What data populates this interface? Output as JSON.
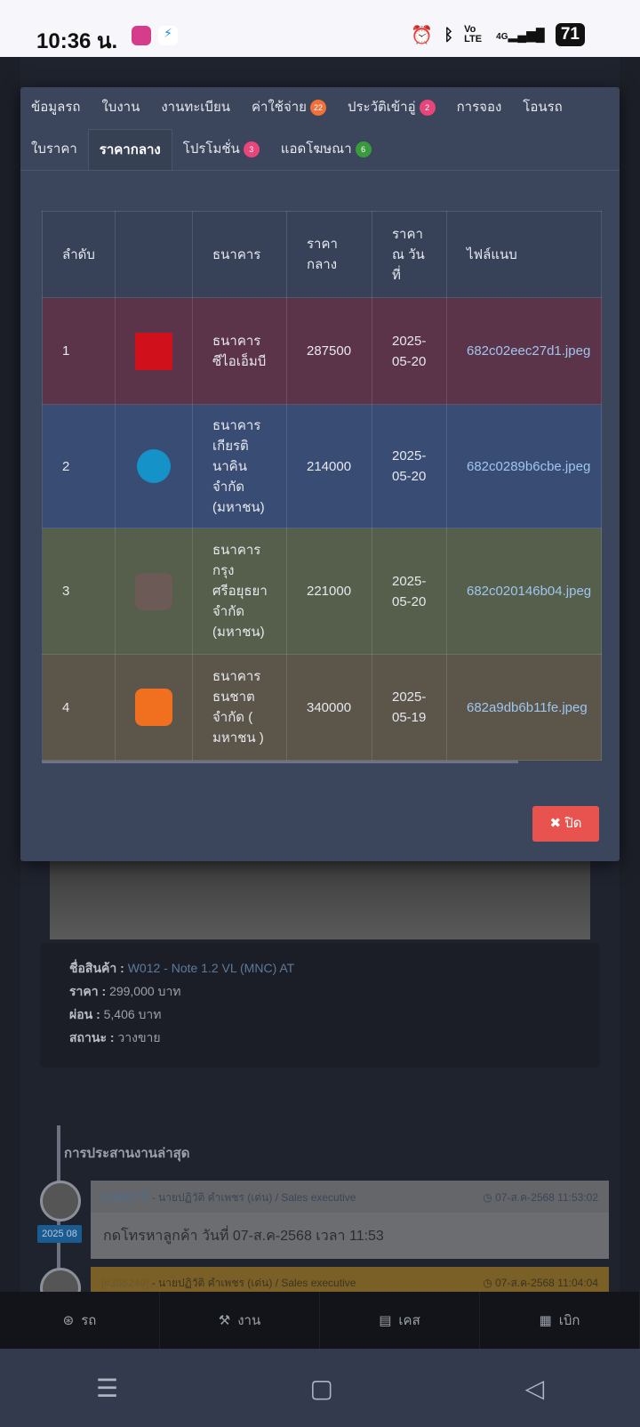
{
  "status_bar": {
    "time": "10:36 น.",
    "network": "4G",
    "volte": "Vo LTE",
    "battery": "71"
  },
  "modal": {
    "tabs_row1": [
      {
        "label": "ข้อมูลรถ"
      },
      {
        "label": "ใบงาน"
      },
      {
        "label": "งานทะเบียน"
      },
      {
        "label": "ค่าใช้จ่าย",
        "badge": "22",
        "badge_color": "#f0703a"
      },
      {
        "label": "ประวัติเข้าอู่",
        "badge": "2",
        "badge_color": "#e8457a"
      },
      {
        "label": "การจอง"
      },
      {
        "label": "โอนรถ"
      }
    ],
    "tabs_row2": [
      {
        "label": "ใบราคา"
      },
      {
        "label": "ราคากลาง",
        "active": true
      },
      {
        "label": "โปรโมชั่น",
        "badge": "3",
        "badge_color": "#e8457a"
      },
      {
        "label": "แอดโฆษณา",
        "badge": "6",
        "badge_color": "#3a9a3e"
      }
    ],
    "table": {
      "headers": [
        "ลำดับ",
        "",
        "ธนาคาร",
        "ราคา กลาง",
        "ราคา ณ วัน ที่",
        "ไฟล์แนบ"
      ],
      "rows": [
        {
          "no": "1",
          "logo": "cimb-thai-logo",
          "bank": "ธนาคาร ซีไอเอ็มบี",
          "price": "287500",
          "date": "2025-05-20",
          "file": "682c02eec27d1.jpeg",
          "color": "#5c3449"
        },
        {
          "no": "2",
          "logo": "kasikorn-logo",
          "bank": "ธนาคาร เกียรติ นาคิน จำกัด (มหาชน)",
          "price": "214000",
          "date": "2025-05-20",
          "file": "682c0289b6cbe.jpeg",
          "color": "#394c74"
        },
        {
          "no": "3",
          "logo": "krungsri-logo",
          "bank": "ธนาคาร กรุง ศรีอยุธยา จำกัด (มหาชน)",
          "price": "221000",
          "date": "2025-05-20",
          "file": "682c020146b04.jpeg",
          "color": "#555f4b"
        },
        {
          "no": "4",
          "logo": "thanachart-logo",
          "bank": "ธนาคาร ธนชาต จำกัด ( มหาชน )",
          "price": "340000",
          "date": "2025-05-19",
          "file": "682a9db6b11fe.jpeg",
          "color": "#5c554a"
        }
      ]
    },
    "close_label": "ปิด"
  },
  "background": {
    "product": {
      "name_label": "ชื่อสินค้า :",
      "name": "W012 - Note 1.2 VL (MNC) AT",
      "price_label": "ราคา :",
      "price": "299,000 บาท",
      "installment_label": "ผ่อน :",
      "installment": "5,406 บาท",
      "status_label": "สถานะ :",
      "status": "วางขาย"
    },
    "timeline_title": "การประสานงานล่าสุด",
    "year_badge": "2025 08",
    "entries": [
      {
        "id": "[#386277]",
        "author": " - นายปฏิวัติ คำเพชร (เด่น) / Sales executive",
        "time": "07-ส.ค-2568 11:53:02",
        "body": "กดโทรหาลูกค้า วันที่ 07-ส.ค-2568 เวลา 11:53"
      },
      {
        "id": "[#386249]",
        "author": " - นายปฏิวัติ คำเพชร (เด่น) / Sales executive",
        "time": "07-ส.ค-2568 11:04:04"
      }
    ]
  },
  "bottom_nav": [
    {
      "label": "รถ",
      "icon": "steering-wheel-icon"
    },
    {
      "label": "งาน",
      "icon": "tools-icon"
    },
    {
      "label": "เคส",
      "icon": "id-card-icon"
    },
    {
      "label": "เบิก",
      "icon": "cash-register-icon"
    }
  ],
  "system_nav": {
    "menu": "☰",
    "home": "▢",
    "back": "◁"
  }
}
